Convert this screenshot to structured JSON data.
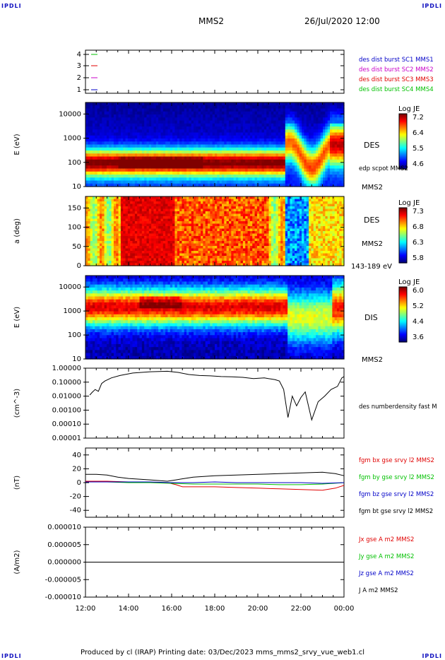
{
  "page": {
    "corner_label": "IPDLI",
    "spacecraft": "MMS2",
    "datetime": "26/Jul/2020 12:00",
    "footer": "Produced by cl (IRAP)   Printing date: 03/Dec/2023   mms_mms2_srvy_vue_web1.cl"
  },
  "colors": {
    "sc1": "#0000c8",
    "sc2": "#c800c8",
    "sc3": "#e00000",
    "sc4": "#00c000",
    "bx": "#e00000",
    "by": "#00c000",
    "bz": "#0000c8",
    "bt": "#000000"
  },
  "chart_data": [
    {
      "type": "line",
      "name": "spacecraft-availability",
      "y_ticks": [
        "4",
        "3",
        "2",
        "1"
      ],
      "legend": [
        {
          "label": "des dist burst SC1 MMS1",
          "color": "#0000c8"
        },
        {
          "label": "des dist burst SC2 MMS2",
          "color": "#c800c8"
        },
        {
          "label": "des dist burst SC3 MMS3",
          "color": "#e00000"
        },
        {
          "label": "des dist burst SC4 MMS4",
          "color": "#00c000"
        }
      ],
      "markers": [
        {
          "level": 4,
          "color": "#00c000"
        },
        {
          "level": 3,
          "color": "#e00000"
        },
        {
          "level": 2,
          "color": "#c800c8"
        },
        {
          "level": 1,
          "color": "#0000c8"
        }
      ]
    },
    {
      "type": "heatmap",
      "name": "des-energy-spectrogram",
      "ylabel": "E (eV)",
      "yscale": "log",
      "ylim": [
        10,
        30000
      ],
      "y_ticks": [
        "10000",
        "1000",
        "100",
        "10"
      ],
      "right_label": "DES",
      "right_label2": "edp scpot MMS2",
      "right_label3": "MMS2",
      "colorbar": {
        "label": "Log JE",
        "ticks": [
          "7.2",
          "6.4",
          "5.5",
          "4.6"
        ]
      }
    },
    {
      "type": "heatmap",
      "name": "des-pitch-angle",
      "ylabel": "a (deg)",
      "ylim": [
        0,
        180
      ],
      "y_ticks": [
        "150",
        "100",
        "50",
        "0"
      ],
      "right_label": "DES",
      "right_label2": "MMS2",
      "right_label3": "143-189 eV",
      "colorbar": {
        "label": "Log JE",
        "ticks": [
          "7.3",
          "6.8",
          "6.3",
          "5.8"
        ]
      }
    },
    {
      "type": "heatmap",
      "name": "dis-energy-spectrogram",
      "ylabel": "E (eV)",
      "yscale": "log",
      "ylim": [
        10,
        30000
      ],
      "y_ticks": [
        "10000",
        "1000",
        "100",
        "10"
      ],
      "right_label": "DIS",
      "right_label2": "MMS2",
      "colorbar": {
        "label": "Log JE",
        "ticks": [
          "6.0",
          "5.2",
          "4.4",
          "3.6"
        ]
      }
    },
    {
      "type": "line",
      "name": "density",
      "ylabel": "(cm^-3)",
      "yscale": "log",
      "y_ticks": [
        "1.00000",
        "0.10000",
        "0.01000",
        "0.00100",
        "0.00010",
        "0.00001"
      ],
      "legend": [
        {
          "label": "des numberdensity fast M",
          "color": "#000000"
        }
      ],
      "series": [
        {
          "name": "des numberdensity fast M",
          "x_hours": [
            12.2,
            12.3,
            12.45,
            12.6,
            12.75,
            12.9,
            13.2,
            13.6,
            14.2,
            15.0,
            15.8,
            16.3,
            16.8,
            17.3,
            17.8,
            18.3,
            18.8,
            19.3,
            19.8,
            20.3,
            20.8,
            21.0,
            21.2,
            21.4,
            21.6,
            21.8,
            22.0,
            22.2,
            22.5,
            22.8,
            23.1,
            23.4,
            23.7,
            23.9,
            24.0
          ],
          "values": [
            0.012,
            0.018,
            0.03,
            0.022,
            0.08,
            0.12,
            0.2,
            0.3,
            0.45,
            0.55,
            0.6,
            0.5,
            0.35,
            0.3,
            0.28,
            0.25,
            0.24,
            0.22,
            0.18,
            0.2,
            0.15,
            0.12,
            0.03,
            0.0003,
            0.01,
            0.002,
            0.008,
            0.02,
            0.0002,
            0.004,
            0.01,
            0.03,
            0.05,
            0.2,
            0.25
          ]
        }
      ]
    },
    {
      "type": "line",
      "name": "magnetic-field",
      "ylabel": "(nT)",
      "ylim": [
        -50,
        50
      ],
      "y_ticks": [
        "40",
        "20",
        "0",
        "-20",
        "-40"
      ],
      "legend": [
        {
          "label": "fgm bx gse srvy l2 MMS2",
          "color": "#e00000"
        },
        {
          "label": "fgm by gse srvy l2 MMS2",
          "color": "#00c000"
        },
        {
          "label": "fgm bz gse srvy l2 MMS2",
          "color": "#0000c8"
        },
        {
          "label": "fgm bt gse srvy l2 MMS2",
          "color": "#000000"
        }
      ],
      "series": [
        {
          "name": "fgm bx gse srvy l2 MMS2",
          "color": "#e00000",
          "x_hours": [
            12.0,
            13.0,
            14.0,
            15.0,
            15.8,
            16.2,
            16.5,
            17.0,
            18.0,
            19.0,
            20.0,
            21.0,
            22.0,
            23.0,
            23.6,
            24.0
          ],
          "values": [
            2,
            2,
            1,
            0,
            0,
            -3,
            -6,
            -6,
            -6,
            -7,
            -8,
            -9,
            -10,
            -11,
            -8,
            -4
          ]
        },
        {
          "name": "fgm by gse srvy l2 MMS2",
          "color": "#00c000",
          "x_hours": [
            12.0,
            13.0,
            14.0,
            15.0,
            16.0,
            17.0,
            18.0,
            19.0,
            20.0,
            21.0,
            22.0,
            23.0,
            24.0
          ],
          "values": [
            1,
            1,
            0,
            0,
            -1,
            -2,
            -2,
            -2,
            -2,
            -3,
            -3,
            -2,
            0
          ]
        },
        {
          "name": "fgm bz gse srvy l2 MMS2",
          "color": "#0000c8",
          "x_hours": [
            12.0,
            13.0,
            14.0,
            15.0,
            16.0,
            17.0,
            18.0,
            19.0,
            20.0,
            21.0,
            22.0,
            23.0,
            24.0
          ],
          "values": [
            1,
            1,
            1,
            1,
            0,
            0,
            1,
            0,
            0,
            0,
            0,
            -1,
            0
          ]
        },
        {
          "name": "fgm bt gse srvy l2 MMS2",
          "color": "#000000",
          "x_hours": [
            12.0,
            12.5,
            13.0,
            13.5,
            14.0,
            15.0,
            15.8,
            16.2,
            16.6,
            17.0,
            18.0,
            19.0,
            20.0,
            21.0,
            22.0,
            23.0,
            23.6,
            24.0
          ],
          "values": [
            12,
            12,
            11,
            8,
            6,
            4,
            2,
            4,
            6,
            8,
            10,
            11,
            12,
            13,
            14,
            15,
            13,
            10
          ]
        }
      ]
    },
    {
      "type": "line",
      "name": "current-density",
      "ylabel": "(A/m2)",
      "ylim": [
        -1e-05,
        1e-05
      ],
      "y_ticks": [
        "0.000010",
        "0.000005",
        "0.000000",
        "-0.000005",
        "-0.000010"
      ],
      "legend": [
        {
          "label": "Jx gse A m2 MMS2",
          "color": "#e00000"
        },
        {
          "label": "Jy gse A m2 MMS2",
          "color": "#00c000"
        },
        {
          "label": "Jz gse A m2 MMS2",
          "color": "#0000c8"
        },
        {
          "label": "J A m2 MMS2",
          "color": "#000000"
        }
      ],
      "series": [
        {
          "name": "J A m2 MMS2",
          "color": "#000000",
          "x_hours": [
            12.0,
            24.0
          ],
          "values": [
            0,
            0
          ]
        }
      ]
    }
  ],
  "x_axis": {
    "tick_labels": [
      "12:00",
      "14:00",
      "16:00",
      "18:00",
      "20:00",
      "22:00",
      "00:00"
    ],
    "range_hours": [
      12,
      24
    ]
  }
}
